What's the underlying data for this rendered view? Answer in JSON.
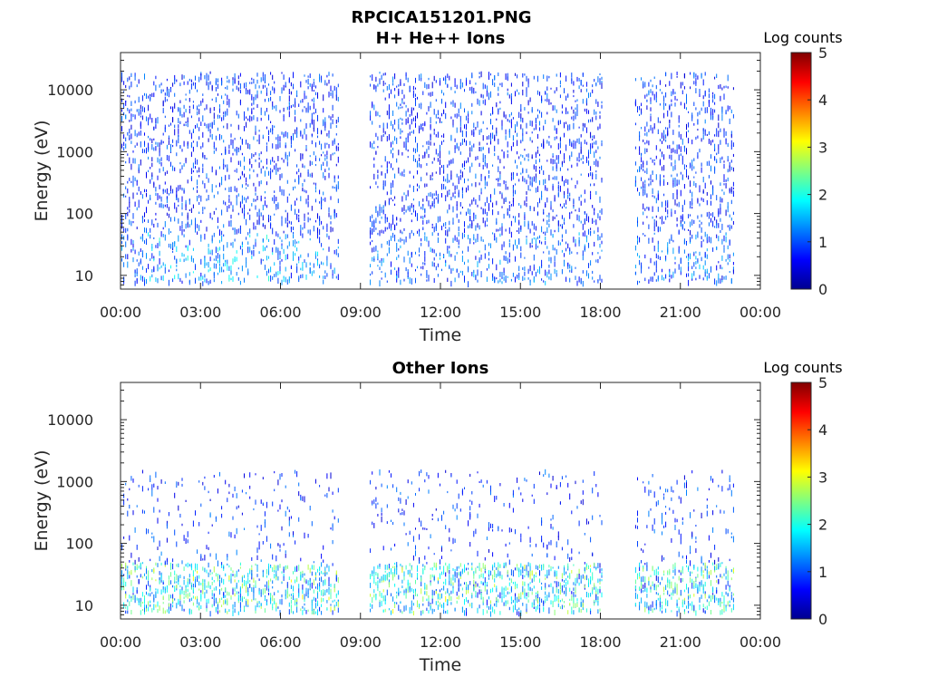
{
  "figure_title": "RPCICA151201.PNG",
  "chart_data": [
    {
      "type": "heatmap",
      "title": "H+ He++ Ions",
      "xlabel": "Time",
      "ylabel": "Energy (eV)",
      "x_ticks": [
        "00:00",
        "03:00",
        "06:00",
        "09:00",
        "12:00",
        "15:00",
        "18:00",
        "21:00",
        "00:00"
      ],
      "xlim_hours": [
        0,
        24
      ],
      "y_scale": "log",
      "y_ticks": [
        10,
        100,
        1000,
        10000
      ],
      "y_tick_labels": [
        "10",
        "100",
        "1000",
        "10000"
      ],
      "ylim": [
        6,
        40000
      ],
      "colorbar": {
        "label": "Log counts",
        "range": [
          0,
          5
        ],
        "ticks": [
          "0",
          "1",
          "2",
          "3",
          "4",
          "5"
        ],
        "colormap": "jet"
      },
      "data_gaps_hours": [
        [
          8.2,
          9.3
        ],
        [
          18.1,
          19.3
        ],
        [
          23.0,
          24.0
        ]
      ],
      "data_description": "Low-level counts (log counts ~0-1) spread across 10 eV - 20 keV; enhanced counts (~1-2) near 10-50 eV around 01:00-07:00"
    },
    {
      "type": "heatmap",
      "title": "Other Ions",
      "xlabel": "Time",
      "ylabel": "Energy (eV)",
      "x_ticks": [
        "00:00",
        "03:00",
        "06:00",
        "09:00",
        "12:00",
        "15:00",
        "18:00",
        "21:00",
        "00:00"
      ],
      "xlim_hours": [
        0,
        24
      ],
      "y_scale": "log",
      "y_ticks": [
        10,
        100,
        1000,
        10000
      ],
      "y_tick_labels": [
        "10",
        "100",
        "1000",
        "10000"
      ],
      "ylim": [
        6,
        40000
      ],
      "colorbar": {
        "label": "Log counts",
        "range": [
          0,
          5
        ],
        "ticks": [
          "0",
          "1",
          "2",
          "3",
          "4",
          "5"
        ],
        "colormap": "jet"
      },
      "data_gaps_hours": [
        [
          8.2,
          9.3
        ],
        [
          18.1,
          19.3
        ],
        [
          23.0,
          24.0
        ]
      ],
      "data_description": "Counts concentrated at 10-50 eV (log counts ~1-3), sparse counts up to ~1000 eV"
    }
  ]
}
